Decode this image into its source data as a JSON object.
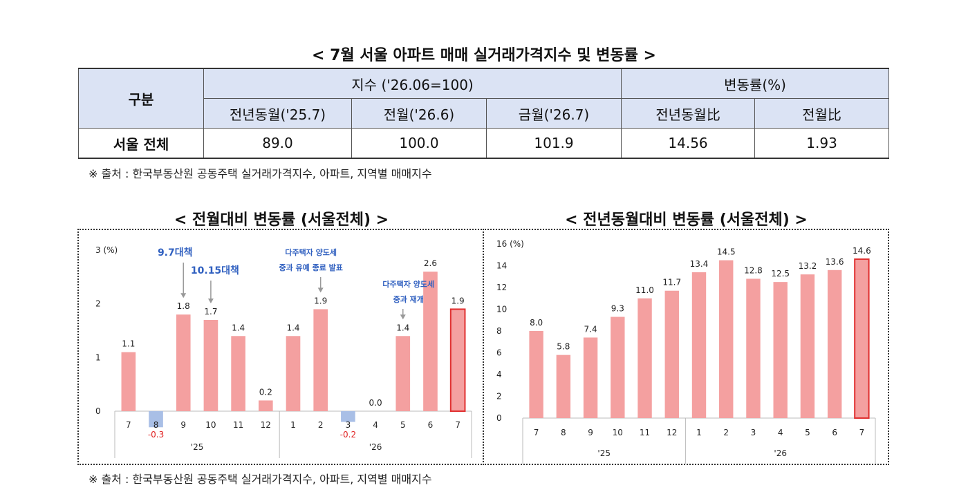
{
  "main_title": "< 7월 서울 아파트 매매 실거래가격지수 및 변동률 >",
  "table": {
    "col_gubun": "구분",
    "group_index": "지수 ('26.06=100)",
    "group_change": "변동률(%)",
    "sub_headers": [
      "전년동월('25.7)",
      "전월('26.6)",
      "금월('26.7)",
      "전년동월比",
      "전월比"
    ],
    "row_label": "서울 전체",
    "row_values": [
      "89.0",
      "100.0",
      "101.9",
      "14.56",
      "1.93"
    ]
  },
  "source_text": "※ 출처 : 한국부동산원 공동주택 실거래가격지수, 아파트, 지역별 매매지수",
  "chart_data": [
    {
      "type": "bar",
      "title": "< 전월대비 변동률 (서울전체) >",
      "ylabel": "(%)",
      "ylim": [
        0,
        3
      ],
      "yticks": [
        0,
        1,
        2,
        3
      ],
      "categories": [
        "7",
        "8",
        "9",
        "10",
        "11",
        "12",
        "1",
        "2",
        "3",
        "4",
        "5",
        "6",
        "7"
      ],
      "year_groups": [
        {
          "label": "'25",
          "span": 6
        },
        {
          "label": "'26",
          "span": 7
        }
      ],
      "values": [
        1.1,
        -0.3,
        1.8,
        1.7,
        1.4,
        0.2,
        1.4,
        1.9,
        -0.2,
        0.0,
        1.4,
        2.6,
        1.9
      ],
      "value_labels": [
        "1.1",
        "-0.3",
        "1.8",
        "1.7",
        "1.4",
        "0.2",
        "1.4",
        "1.9",
        "-0.2",
        "0.0",
        "1.4",
        "2.6",
        "1.9"
      ],
      "annotations": [
        {
          "target_index": 2,
          "lines": [
            "9.7대책"
          ],
          "size": "large"
        },
        {
          "target_index": 3,
          "lines": [
            "10.15대책"
          ],
          "size": "large"
        },
        {
          "target_index": 7,
          "lines": [
            "다주택자 양도세",
            "중과 유예 종료 발표"
          ],
          "size": "small"
        },
        {
          "target_index": 10,
          "lines": [
            "다주택자 양도세",
            "중과 재개"
          ],
          "size": "small"
        }
      ],
      "colors": {
        "positive": "#f4a0a0",
        "negative": "#a9bfe6",
        "highlight_border": "#e03030",
        "negative_label": "#e02020",
        "annotation": "#3060c0"
      },
      "highlight_last": true,
      "grid": false
    },
    {
      "type": "bar",
      "title": "< 전년동월대비 변동률 (서울전체) >",
      "ylabel": "(%)",
      "ylim": [
        0,
        16
      ],
      "yticks": [
        0,
        2,
        4,
        6,
        8,
        10,
        12,
        14,
        16
      ],
      "categories": [
        "7",
        "8",
        "9",
        "10",
        "11",
        "12",
        "1",
        "2",
        "3",
        "4",
        "5",
        "6",
        "7"
      ],
      "year_groups": [
        {
          "label": "'25",
          "span": 6
        },
        {
          "label": "'26",
          "span": 7
        }
      ],
      "values": [
        8.0,
        5.8,
        7.4,
        9.3,
        11.0,
        11.7,
        13.4,
        14.5,
        12.8,
        12.5,
        13.2,
        13.6,
        14.6
      ],
      "value_labels": [
        "8.0",
        "5.8",
        "7.4",
        "9.3",
        "11.0",
        "11.7",
        "13.4",
        "14.5",
        "12.8",
        "12.5",
        "13.2",
        "13.6",
        "14.6"
      ],
      "colors": {
        "positive": "#f4a0a0",
        "highlight_border": "#e03030"
      },
      "highlight_last": true,
      "grid": false
    }
  ]
}
